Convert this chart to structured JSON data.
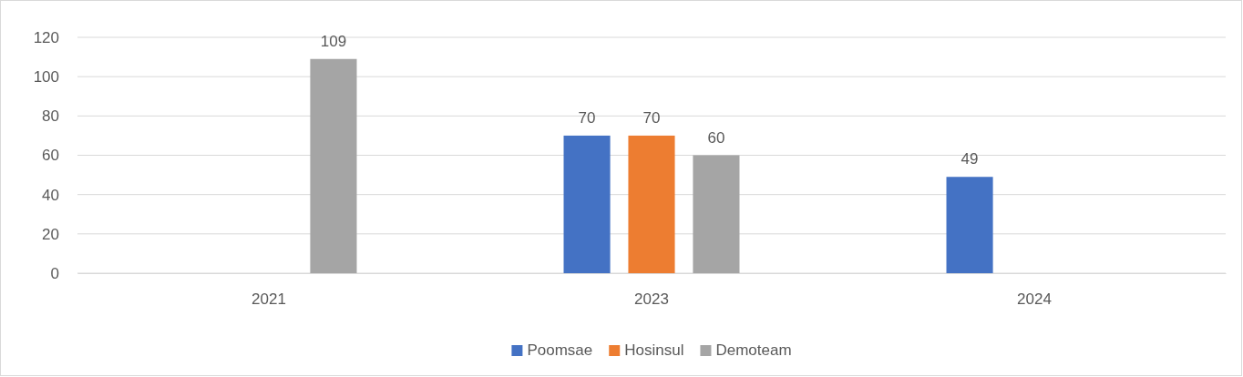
{
  "chart_data": {
    "type": "bar",
    "categories": [
      "2021",
      "2023",
      "2024"
    ],
    "series": [
      {
        "name": "Poomsae",
        "color": "#4472c4",
        "values": [
          null,
          70,
          49
        ]
      },
      {
        "name": "Hosinsul",
        "color": "#ed7d31",
        "values": [
          null,
          70,
          null
        ]
      },
      {
        "name": "Demoteam",
        "color": "#a5a5a5",
        "values": [
          109,
          60,
          null
        ]
      }
    ],
    "ylim": [
      0,
      120
    ],
    "yticks": [
      0,
      20,
      40,
      60,
      80,
      100,
      120
    ],
    "grid": "y",
    "legend": "bottom",
    "data_labels": true
  }
}
